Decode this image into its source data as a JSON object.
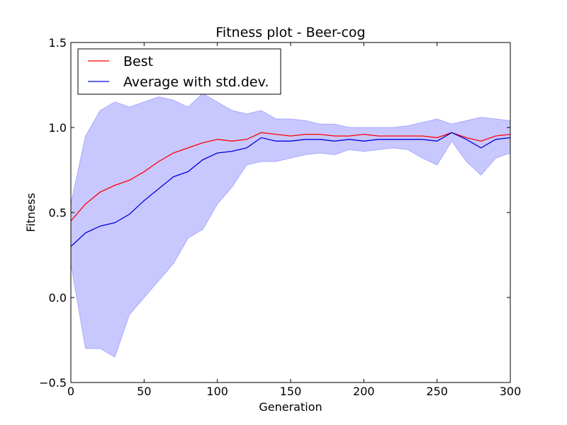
{
  "chart_data": {
    "type": "line",
    "title": "Fitness plot - Beer-cog",
    "xlabel": "Generation",
    "ylabel": "Fitness",
    "xlim": [
      0,
      300
    ],
    "ylim": [
      -0.5,
      1.5
    ],
    "x_ticks": [
      0,
      50,
      100,
      150,
      200,
      250,
      300
    ],
    "y_ticks": [
      -0.5,
      0.0,
      0.5,
      1.0,
      1.5
    ],
    "x_tick_labels": [
      "0",
      "50",
      "100",
      "150",
      "200",
      "250",
      "300"
    ],
    "y_tick_labels": [
      "−0.5",
      "0.0",
      "0.5",
      "1.0",
      "1.5"
    ],
    "grid": false,
    "legend_position": "top-left",
    "x": [
      0,
      10,
      20,
      30,
      40,
      50,
      60,
      70,
      80,
      90,
      100,
      110,
      120,
      130,
      140,
      150,
      160,
      170,
      180,
      190,
      200,
      210,
      220,
      230,
      240,
      250,
      260,
      270,
      280,
      290,
      300
    ],
    "series": [
      {
        "name": "Best",
        "color": "#ff0000",
        "values": [
          0.45,
          0.55,
          0.62,
          0.66,
          0.69,
          0.74,
          0.8,
          0.85,
          0.88,
          0.91,
          0.93,
          0.92,
          0.93,
          0.97,
          0.96,
          0.95,
          0.96,
          0.96,
          0.95,
          0.95,
          0.96,
          0.95,
          0.95,
          0.95,
          0.95,
          0.94,
          0.97,
          0.94,
          0.92,
          0.95,
          0.96
        ]
      },
      {
        "name": "Average with std.dev.",
        "color": "#0000dd",
        "band_color": "#c8c8ff",
        "values": [
          0.3,
          0.38,
          0.42,
          0.44,
          0.49,
          0.57,
          0.64,
          0.71,
          0.74,
          0.81,
          0.85,
          0.86,
          0.88,
          0.94,
          0.92,
          0.92,
          0.93,
          0.93,
          0.92,
          0.93,
          0.92,
          0.93,
          0.93,
          0.93,
          0.93,
          0.92,
          0.97,
          0.93,
          0.88,
          0.93,
          0.94
        ],
        "lower": [
          0.2,
          -0.3,
          -0.3,
          -0.35,
          -0.1,
          0.0,
          0.1,
          0.2,
          0.35,
          0.4,
          0.55,
          0.65,
          0.78,
          0.8,
          0.8,
          0.82,
          0.84,
          0.85,
          0.84,
          0.87,
          0.86,
          0.87,
          0.88,
          0.87,
          0.82,
          0.78,
          0.92,
          0.8,
          0.72,
          0.82,
          0.85
        ],
        "upper": [
          0.55,
          0.95,
          1.1,
          1.15,
          1.12,
          1.15,
          1.18,
          1.16,
          1.12,
          1.2,
          1.15,
          1.1,
          1.08,
          1.1,
          1.05,
          1.05,
          1.04,
          1.02,
          1.02,
          1.0,
          1.0,
          1.0,
          1.0,
          1.01,
          1.03,
          1.05,
          1.02,
          1.04,
          1.06,
          1.05,
          1.04
        ]
      }
    ]
  }
}
